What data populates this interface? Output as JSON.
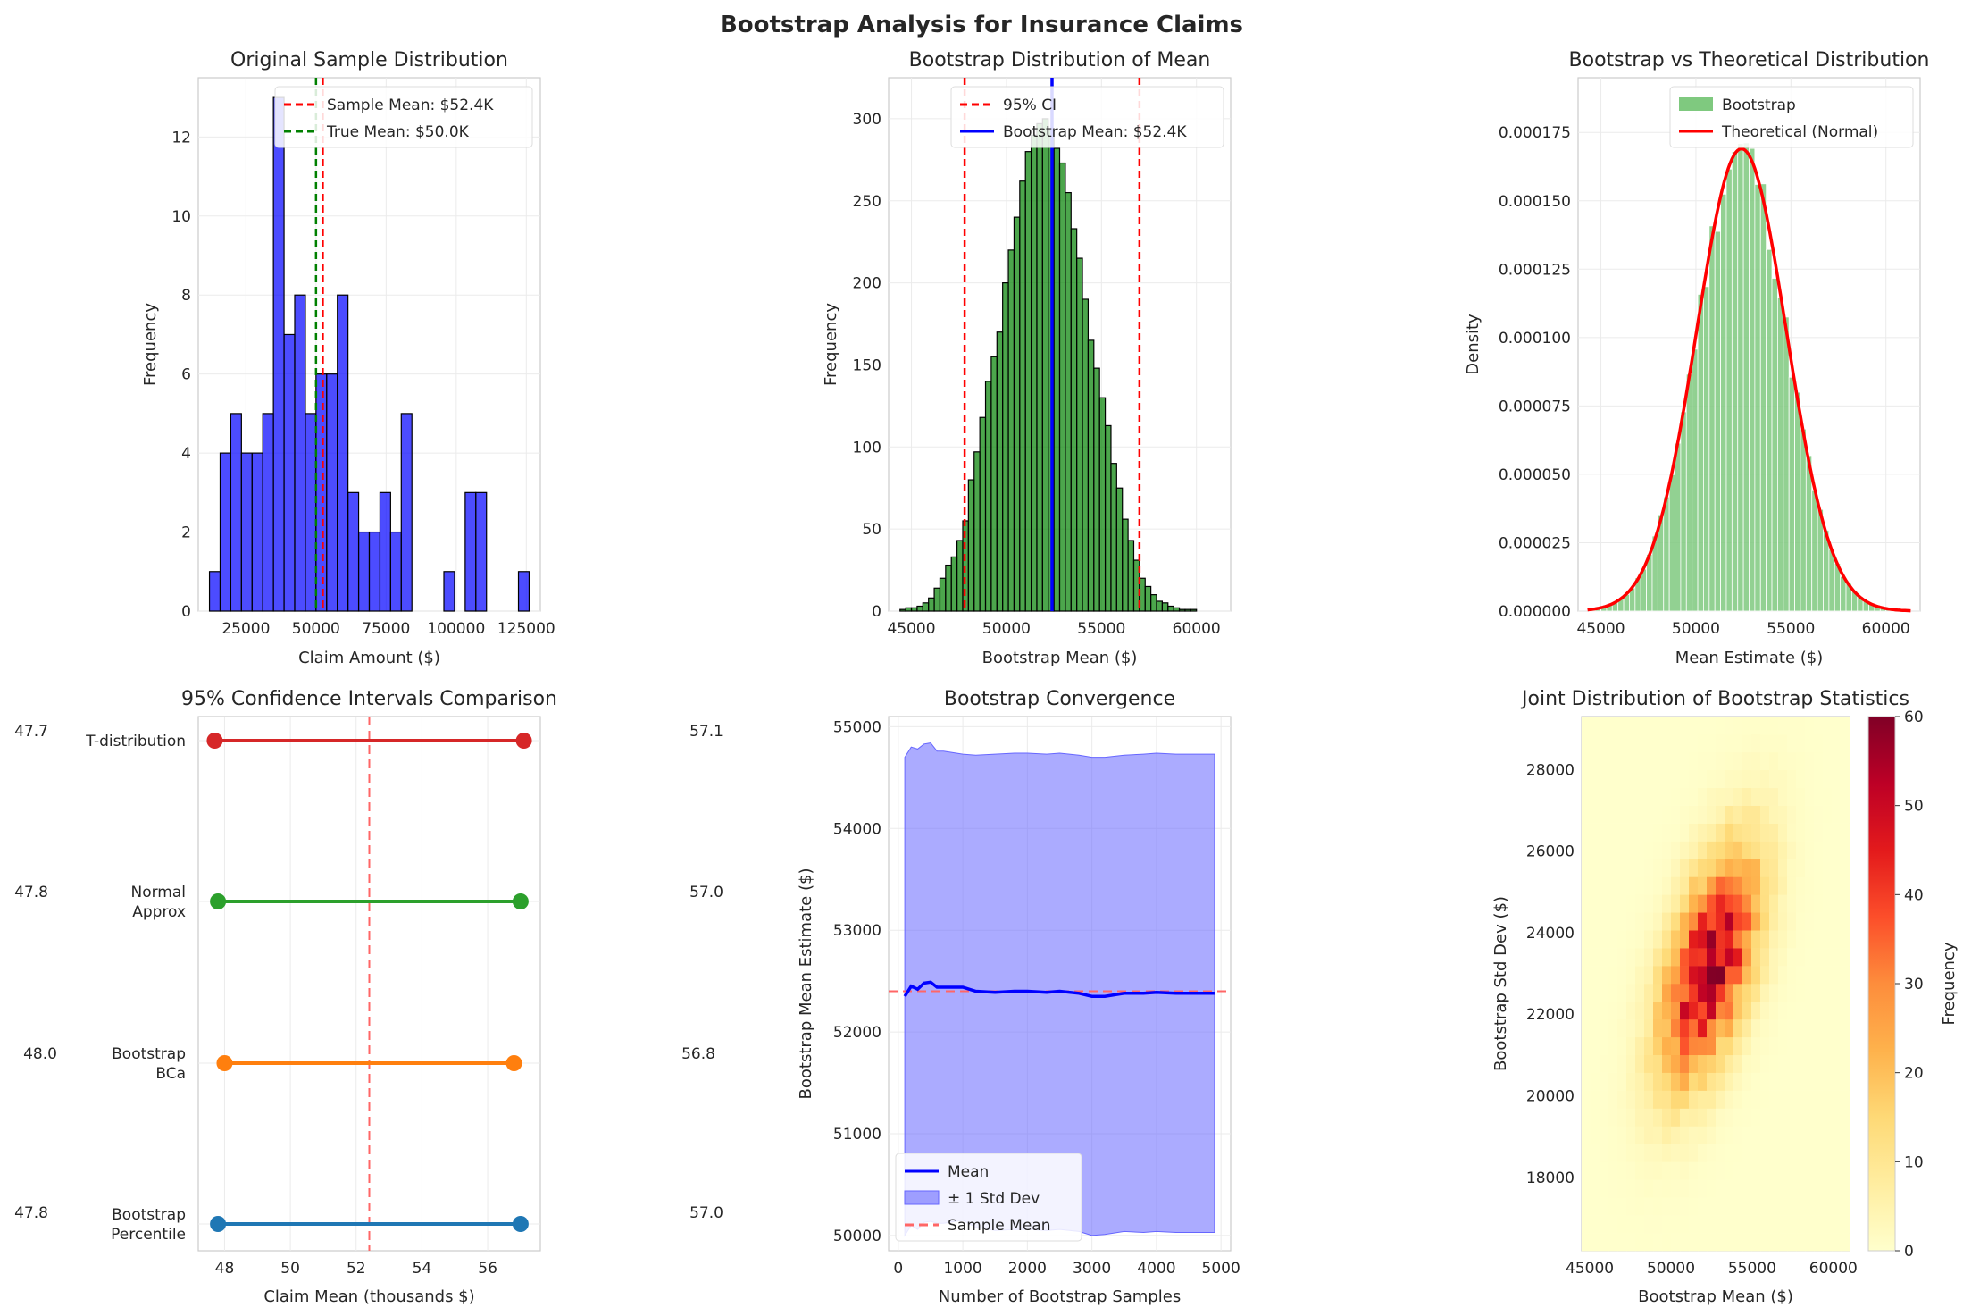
{
  "figure": {
    "suptitle": "Bootstrap Analysis for Insurance Claims",
    "colors": {
      "blue": "#0000ff",
      "green": "#008000",
      "red": "#ff0000",
      "orange": "#ff7f0e",
      "redc": "#d62728",
      "greenc": "#2ca02c",
      "bluec": "#1f77b4"
    }
  },
  "chart_data": [
    {
      "type": "bar",
      "title": "Original Sample Distribution",
      "xlabel": "Claim Amount ($)",
      "ylabel": "Frequency",
      "xlim": [
        8000,
        130000
      ],
      "ylim": [
        0,
        13.5
      ],
      "xticks": [
        25000,
        50000,
        75000,
        100000,
        125000
      ],
      "yticks": [
        0,
        2,
        4,
        6,
        8,
        10,
        12
      ],
      "bin_start": 12000,
      "bin_width": 3800,
      "values": [
        1,
        4,
        5,
        4,
        4,
        5,
        13,
        7,
        8,
        5,
        6,
        6,
        8,
        3,
        2,
        2,
        3,
        2,
        5,
        0,
        0,
        0,
        1,
        0,
        3,
        3,
        0,
        0,
        0,
        1
      ],
      "vlines": [
        {
          "name": "Sample Mean: $52.4K",
          "x": 52400,
          "color": "#ff0000"
        },
        {
          "name": "True Mean: $50.0K",
          "x": 50000,
          "color": "#008000"
        }
      ],
      "legend": "upper right"
    },
    {
      "type": "bar",
      "title": "Bootstrap Distribution of Mean",
      "xlabel": "Bootstrap Mean ($)",
      "ylabel": "Frequency",
      "xlim": [
        43800,
        61800
      ],
      "ylim": [
        0,
        325
      ],
      "xticks": [
        45000,
        50000,
        55000,
        60000
      ],
      "yticks": [
        0,
        50,
        100,
        150,
        200,
        250,
        300
      ],
      "bin_start": 44400,
      "bin_width": 300,
      "values": [
        1,
        2,
        2,
        3,
        5,
        8,
        14,
        20,
        28,
        33,
        43,
        55,
        80,
        97,
        118,
        140,
        155,
        170,
        200,
        220,
        240,
        262,
        280,
        290,
        297,
        300,
        293,
        282,
        273,
        255,
        233,
        215,
        190,
        165,
        148,
        130,
        113,
        90,
        75,
        56,
        43,
        31,
        20,
        15,
        10,
        6,
        5,
        3,
        2,
        1,
        1,
        1
      ],
      "vlines": [
        {
          "name": "95% CI",
          "x": 47800,
          "color": "#ff0000"
        },
        {
          "name": "",
          "x": 57000,
          "color": "#ff0000"
        },
        {
          "name": "Bootstrap Mean: $52.4K",
          "x": 52400,
          "color": "#0000ff"
        }
      ],
      "legend": "upper center"
    },
    {
      "type": "bar",
      "title": "Bootstrap vs Theoretical Distribution",
      "xlabel": "Mean Estimate ($)",
      "ylabel": "Density",
      "xlim": [
        43800,
        61800
      ],
      "ylim": [
        0,
        0.000195
      ],
      "xticks": [
        45000,
        50000,
        55000,
        60000
      ],
      "yticks": [
        0,
        2.5e-05,
        5e-05,
        7.5e-05,
        0.0001,
        0.000125,
        0.00015,
        0.000175
      ],
      "ytick_labels": [
        "0.000000",
        "0.000025",
        "0.000050",
        "0.000075",
        "0.000100",
        "0.000125",
        "0.000150",
        "0.000175"
      ],
      "series": [
        {
          "name": "Bootstrap",
          "type": "histogram",
          "color": "#7fc97f"
        },
        {
          "name": "Theoretical (Normal)",
          "type": "line",
          "color": "#ff0000",
          "mean": 52400,
          "std": 2360
        }
      ],
      "legend": "upper right"
    },
    {
      "type": "interval",
      "title": "95% Confidence Intervals Comparison",
      "xlabel": "Claim Mean (thousands $)",
      "xlim": [
        47.2,
        57.6
      ],
      "xticks": [
        48,
        50,
        52,
        54,
        56
      ],
      "reference_line": 52.4,
      "rows": [
        {
          "label": [
            "T-distribution"
          ],
          "lower": 47.7,
          "upper": 57.1,
          "lower_label": "47.7",
          "upper_label": "57.1",
          "color": "#d62728"
        },
        {
          "label": [
            "Normal",
            "Approx"
          ],
          "lower": 47.8,
          "upper": 57.0,
          "lower_label": "47.8",
          "upper_label": "57.0",
          "color": "#2ca02c"
        },
        {
          "label": [
            "Bootstrap",
            "BCa"
          ],
          "lower": 48.0,
          "upper": 56.8,
          "lower_label": "48.0",
          "upper_label": "56.8",
          "color": "#ff7f0e"
        },
        {
          "label": [
            "Bootstrap",
            "Percentile"
          ],
          "lower": 47.8,
          "upper": 57.0,
          "lower_label": "47.8",
          "upper_label": "57.0",
          "color": "#1f77b4"
        }
      ]
    },
    {
      "type": "line",
      "title": "Bootstrap Convergence",
      "xlabel": "Number of Bootstrap Samples",
      "ylabel": "Bootstrap Mean Estimate ($)",
      "xlim": [
        -150,
        5150
      ],
      "ylim": [
        49850,
        55100
      ],
      "xticks": [
        0,
        1000,
        2000,
        3000,
        4000,
        5000
      ],
      "yticks": [
        50000,
        51000,
        52000,
        53000,
        54000,
        55000
      ],
      "x": [
        100,
        200,
        300,
        400,
        500,
        600,
        700,
        800,
        1000,
        1200,
        1500,
        1800,
        2000,
        2300,
        2500,
        2800,
        3000,
        3200,
        3500,
        3800,
        4000,
        4300,
        4600,
        4900
      ],
      "series": [
        {
          "name": "Mean",
          "values": [
            52350,
            52450,
            52420,
            52480,
            52490,
            52440,
            52440,
            52440,
            52440,
            52400,
            52390,
            52400,
            52400,
            52390,
            52400,
            52380,
            52350,
            52350,
            52380,
            52380,
            52390,
            52380,
            52380,
            52380
          ],
          "color": "#0000ff"
        },
        {
          "name": "± 1 Std Dev",
          "upper": [
            54700,
            54800,
            54780,
            54830,
            54840,
            54760,
            54760,
            54750,
            54730,
            54720,
            54730,
            54740,
            54740,
            54730,
            54740,
            54720,
            54700,
            54700,
            54720,
            54730,
            54740,
            54730,
            54730,
            54730
          ],
          "lower": [
            50000,
            50100,
            50060,
            50130,
            50140,
            50120,
            50120,
            50130,
            50150,
            50080,
            50050,
            50060,
            50060,
            50050,
            50060,
            50040,
            50000,
            50010,
            50040,
            50030,
            50040,
            50030,
            50030,
            50030
          ],
          "color": "#6666ff"
        },
        {
          "name": "Sample Mean",
          "value": 52400,
          "color": "#ff6666"
        }
      ],
      "legend": "lower left"
    },
    {
      "type": "heatmap",
      "title": "Joint Distribution of Bootstrap Statistics",
      "xlabel": "Bootstrap Mean ($)",
      "ylabel": "Bootstrap Std Dev ($)",
      "colorbar_label": "Frequency",
      "xlim": [
        44500,
        61000
      ],
      "ylim": [
        16200,
        29300
      ],
      "xticks": [
        45000,
        50000,
        55000,
        60000
      ],
      "yticks": [
        18000,
        20000,
        22000,
        24000,
        26000,
        28000
      ],
      "clim": [
        0,
        60
      ],
      "cbar_ticks": [
        0,
        10,
        20,
        30,
        40,
        50,
        60
      ],
      "center": [
        52400,
        23200
      ],
      "sigma": [
        2000,
        1900
      ],
      "rho": 0.55,
      "peak": 58,
      "bins": [
        30,
        30
      ]
    }
  ]
}
